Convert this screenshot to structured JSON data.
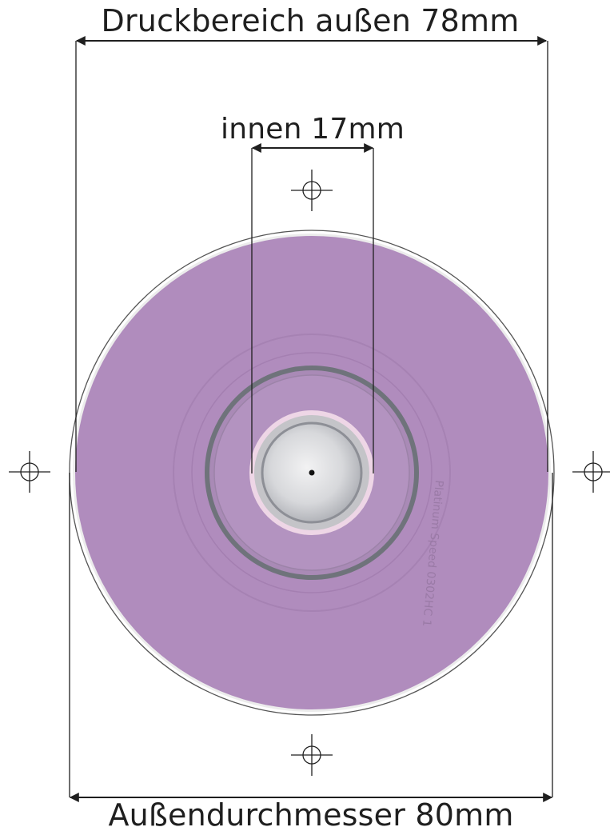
{
  "labels": {
    "print_area_outer": "Druckbereich außen 78mm",
    "print_area_inner": "innen 17mm",
    "outer_diameter": "Außendurchmesser 80mm"
  },
  "disc_text": "Platinum Speed 0302HC 1",
  "colors": {
    "print_area": "#b08cbd",
    "disc_edge": "#d8d8d8",
    "hub_ring": "#7d7f87",
    "center_hole": "#d9dadd",
    "hole_rim": "#eed6e6",
    "lines": "#1f1f1f"
  },
  "icons": [
    "registration-mark-icon"
  ]
}
